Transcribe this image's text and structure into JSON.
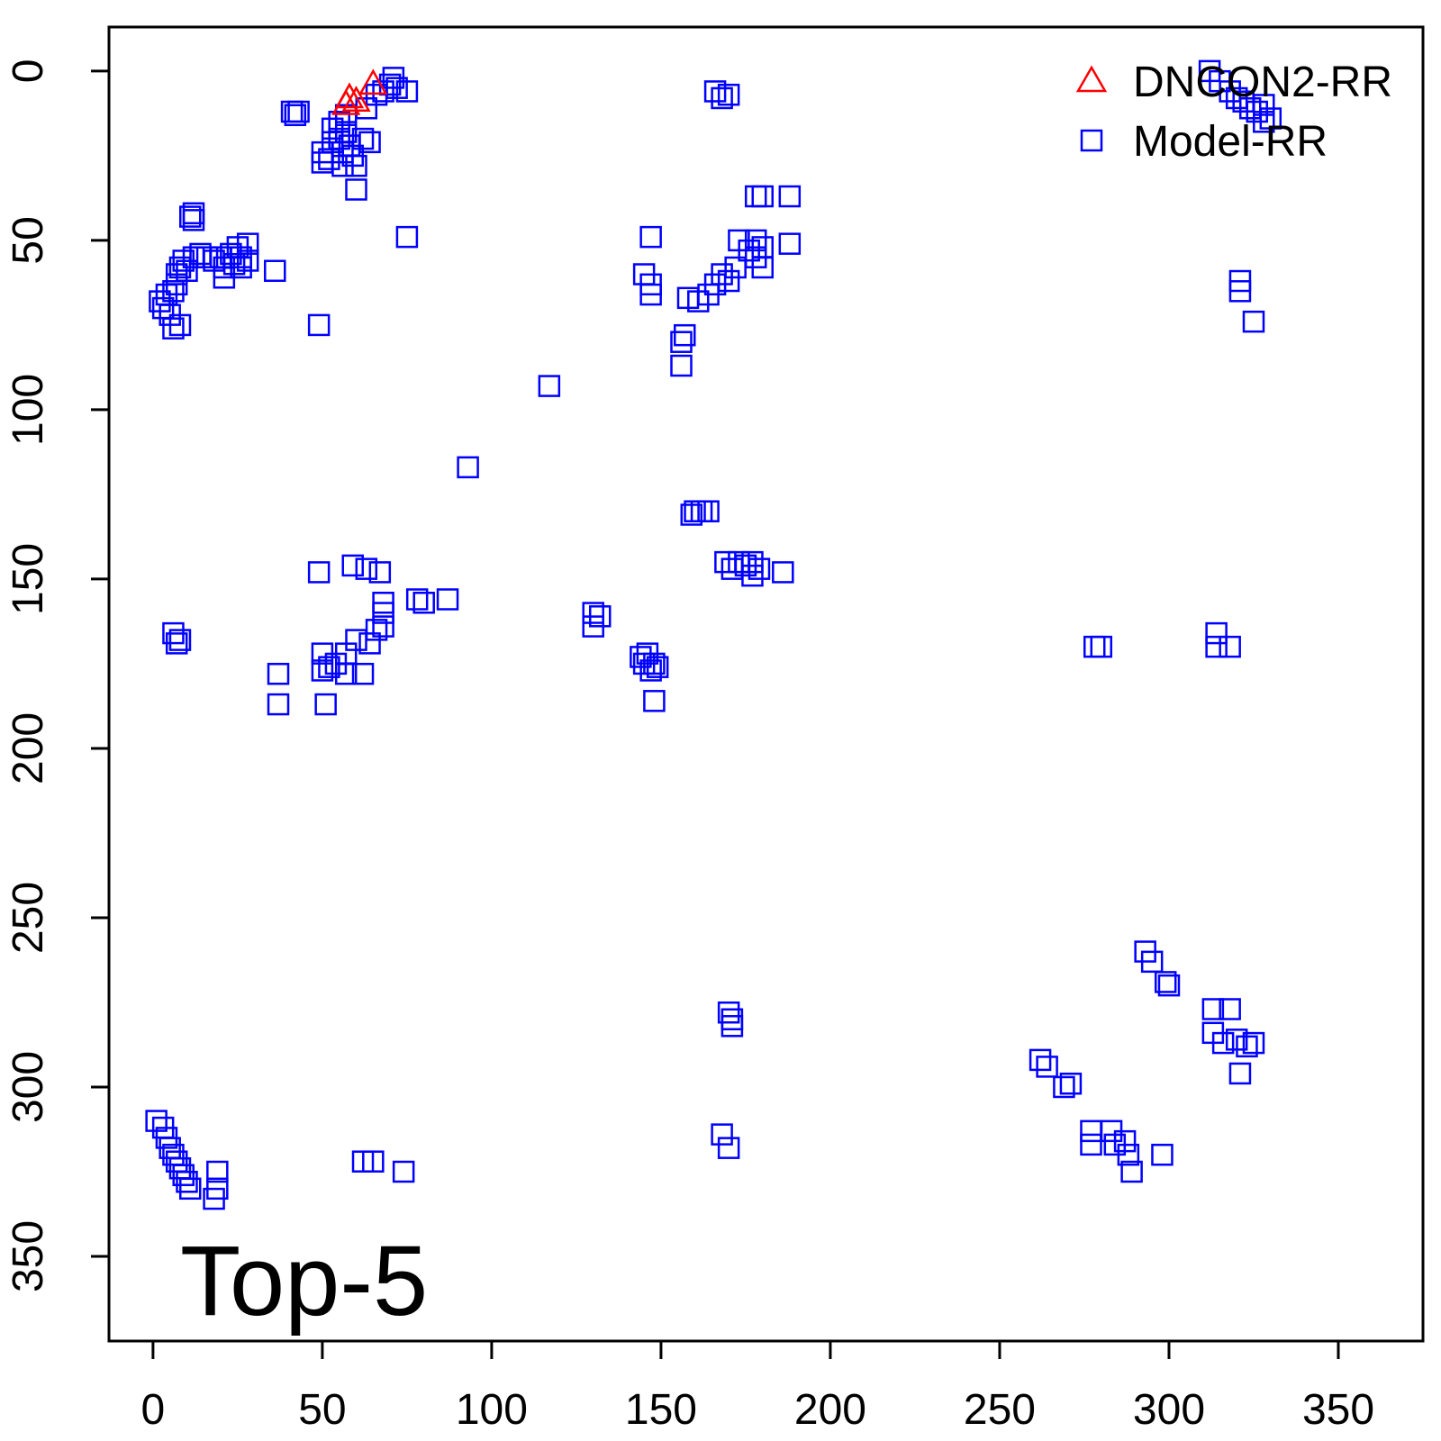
{
  "chart_data": {
    "type": "scatter",
    "title": "",
    "xlabel": "",
    "ylabel": "",
    "xlim": [
      -13,
      375
    ],
    "ylim": [
      -13,
      375
    ],
    "y_reversed": true,
    "grid": false,
    "legend_position": "top-right",
    "panel_label": "Top-5",
    "x_ticks": [
      0,
      50,
      100,
      150,
      200,
      250,
      300,
      350
    ],
    "y_ticks": [
      0,
      50,
      100,
      150,
      200,
      250,
      300,
      350
    ],
    "series": [
      {
        "name": "DNCON2-RR",
        "marker": "triangle",
        "color": "#ff0000",
        "points": [
          [
            57,
            10
          ],
          [
            58,
            8
          ],
          [
            60,
            9
          ],
          [
            65,
            4
          ]
        ]
      },
      {
        "name": "Model-RR",
        "marker": "square",
        "color": "#0000ff",
        "points": [
          [
            41,
            12
          ],
          [
            43,
            12
          ],
          [
            42,
            13
          ],
          [
            50,
            24
          ],
          [
            50,
            27
          ],
          [
            52,
            26
          ],
          [
            53,
            21
          ],
          [
            53,
            17
          ],
          [
            55,
            15
          ],
          [
            55,
            20
          ],
          [
            56,
            24
          ],
          [
            56,
            28
          ],
          [
            57,
            13
          ],
          [
            57,
            18
          ],
          [
            58,
            22
          ],
          [
            59,
            25
          ],
          [
            60,
            28
          ],
          [
            60,
            35
          ],
          [
            62,
            20
          ],
          [
            63,
            11
          ],
          [
            64,
            21
          ],
          [
            66,
            7
          ],
          [
            68,
            6
          ],
          [
            70,
            4
          ],
          [
            71,
            2
          ],
          [
            72,
            5
          ],
          [
            75,
            6
          ],
          [
            12,
            42
          ],
          [
            12,
            44
          ],
          [
            11,
            43
          ],
          [
            2,
            68
          ],
          [
            3,
            70
          ],
          [
            4,
            66
          ],
          [
            5,
            72
          ],
          [
            6,
            65
          ],
          [
            6,
            76
          ],
          [
            7,
            63
          ],
          [
            7,
            60
          ],
          [
            8,
            58
          ],
          [
            8,
            75
          ],
          [
            9,
            56
          ],
          [
            10,
            59
          ],
          [
            12,
            55
          ],
          [
            14,
            54
          ],
          [
            16,
            55
          ],
          [
            18,
            56
          ],
          [
            20,
            55
          ],
          [
            21,
            58
          ],
          [
            21,
            61
          ],
          [
            23,
            54
          ],
          [
            24,
            57
          ],
          [
            25,
            52
          ],
          [
            26,
            55
          ],
          [
            26,
            58
          ],
          [
            28,
            51
          ],
          [
            28,
            56
          ],
          [
            36,
            59
          ],
          [
            49,
            75
          ],
          [
            75,
            49
          ],
          [
            117,
            93
          ],
          [
            93,
            117
          ],
          [
            145,
            60
          ],
          [
            147,
            49
          ],
          [
            147,
            63
          ],
          [
            147,
            66
          ],
          [
            156,
            80
          ],
          [
            157,
            78
          ],
          [
            156,
            87
          ],
          [
            158,
            67
          ],
          [
            161,
            68
          ],
          [
            164,
            66
          ],
          [
            166,
            63
          ],
          [
            168,
            60
          ],
          [
            170,
            62
          ],
          [
            172,
            58
          ],
          [
            173,
            50
          ],
          [
            176,
            53
          ],
          [
            178,
            50
          ],
          [
            178,
            55
          ],
          [
            180,
            52
          ],
          [
            180,
            58
          ],
          [
            178,
            37
          ],
          [
            180,
            37
          ],
          [
            188,
            37
          ],
          [
            188,
            51
          ],
          [
            166,
            6
          ],
          [
            168,
            8
          ],
          [
            170,
            7
          ],
          [
            159,
            131
          ],
          [
            160,
            130
          ],
          [
            162,
            130
          ],
          [
            164,
            130
          ],
          [
            169,
            145
          ],
          [
            171,
            147
          ],
          [
            173,
            145
          ],
          [
            175,
            146
          ],
          [
            177,
            145
          ],
          [
            177,
            149
          ],
          [
            179,
            147
          ],
          [
            186,
            148
          ],
          [
            130,
            160
          ],
          [
            130,
            164
          ],
          [
            132,
            161
          ],
          [
            144,
            173
          ],
          [
            145,
            175
          ],
          [
            146,
            172
          ],
          [
            147,
            177
          ],
          [
            148,
            175
          ],
          [
            149,
            176
          ],
          [
            148,
            186
          ],
          [
            6,
            166
          ],
          [
            7,
            169
          ],
          [
            8,
            168
          ],
          [
            37,
            178
          ],
          [
            37,
            187
          ],
          [
            49,
            148
          ],
          [
            50,
            172
          ],
          [
            50,
            177
          ],
          [
            52,
            176
          ],
          [
            51,
            187
          ],
          [
            54,
            175
          ],
          [
            57,
            172
          ],
          [
            57,
            178
          ],
          [
            59,
            146
          ],
          [
            60,
            168
          ],
          [
            62,
            178
          ],
          [
            63,
            147
          ],
          [
            64,
            169
          ],
          [
            66,
            165
          ],
          [
            67,
            148
          ],
          [
            68,
            157
          ],
          [
            68,
            160
          ],
          [
            68,
            164
          ],
          [
            78,
            156
          ],
          [
            80,
            157
          ],
          [
            87,
            156
          ],
          [
            312,
            0
          ],
          [
            315,
            3
          ],
          [
            318,
            6
          ],
          [
            320,
            8
          ],
          [
            322,
            9
          ],
          [
            324,
            11
          ],
          [
            326,
            12
          ],
          [
            328,
            10
          ],
          [
            328,
            15
          ],
          [
            330,
            14
          ],
          [
            321,
            62
          ],
          [
            321,
            65
          ],
          [
            325,
            74
          ],
          [
            278,
            170
          ],
          [
            280,
            170
          ],
          [
            314,
            166
          ],
          [
            314,
            170
          ],
          [
            318,
            170
          ],
          [
            293,
            260
          ],
          [
            295,
            263
          ],
          [
            299,
            269
          ],
          [
            300,
            270
          ],
          [
            313,
            277
          ],
          [
            313,
            284
          ],
          [
            316,
            287
          ],
          [
            318,
            277
          ],
          [
            320,
            286
          ],
          [
            323,
            288
          ],
          [
            325,
            287
          ],
          [
            321,
            296
          ],
          [
            170,
            278
          ],
          [
            171,
            280
          ],
          [
            171,
            282
          ],
          [
            262,
            292
          ],
          [
            264,
            294
          ],
          [
            269,
            300
          ],
          [
            271,
            299
          ],
          [
            277,
            313
          ],
          [
            277,
            317
          ],
          [
            283,
            313
          ],
          [
            284,
            317
          ],
          [
            287,
            316
          ],
          [
            288,
            320
          ],
          [
            289,
            325
          ],
          [
            298,
            320
          ],
          [
            168,
            314
          ],
          [
            170,
            318
          ],
          [
            1,
            310
          ],
          [
            3,
            312
          ],
          [
            4,
            315
          ],
          [
            5,
            318
          ],
          [
            6,
            320
          ],
          [
            7,
            322
          ],
          [
            8,
            324
          ],
          [
            9,
            326
          ],
          [
            10,
            328
          ],
          [
            11,
            330
          ],
          [
            18,
            333
          ],
          [
            19,
            330
          ],
          [
            19,
            325
          ],
          [
            62,
            322
          ],
          [
            65,
            322
          ],
          [
            74,
            325
          ]
        ]
      }
    ]
  }
}
